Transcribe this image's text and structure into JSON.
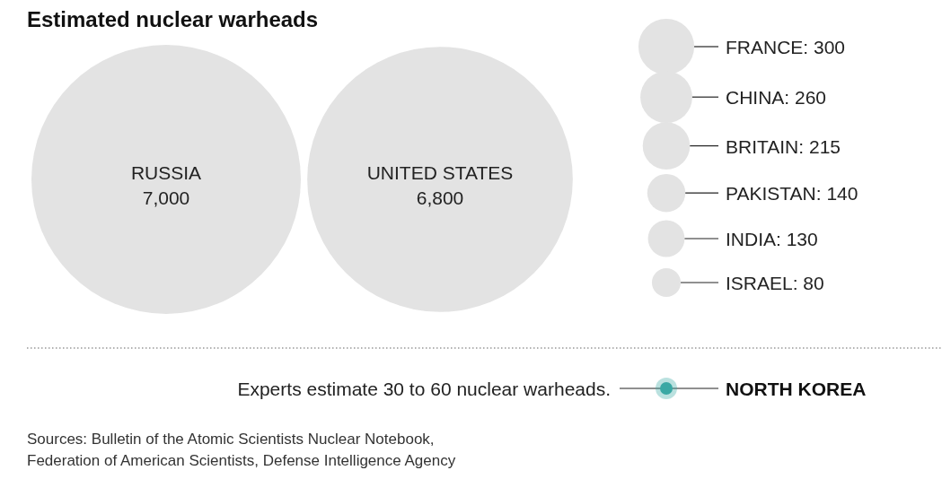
{
  "chart_data": {
    "type": "other",
    "title": "Estimated nuclear warheads",
    "categories": [
      "RUSSIA",
      "UNITED STATES",
      "FRANCE",
      "CHINA",
      "BRITAIN",
      "PAKISTAN",
      "INDIA",
      "ISRAEL",
      "NORTH KOREA"
    ],
    "values": [
      7000,
      6800,
      300,
      260,
      215,
      140,
      130,
      80,
      null
    ],
    "colors": [
      "#e3e3e3",
      "#e3e3e3",
      "#e3e3e3",
      "#e3e3e3",
      "#e3e3e3",
      "#e3e3e3",
      "#e3e3e3",
      "#e3e3e3",
      "#3aa8a4"
    ],
    "value_labels": [
      "7,000",
      "6,800",
      ": 300",
      ": 260",
      ": 215",
      ": 140",
      ": 130",
      ": 80",
      null
    ],
    "annotations": [
      {
        "text": "Experts estimate 30 to 60 nuclear warheads.",
        "x": "NORTH KOREA"
      },
      "Sources: Bulletin of the Atomic Scientists Nuclear Notebook,\nFederation of American Scientists, Defense Intelligence Agency"
    ]
  }
}
